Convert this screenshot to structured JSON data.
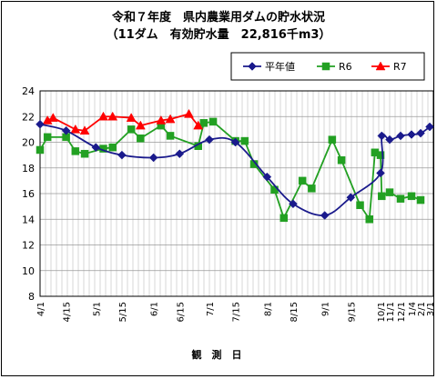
{
  "chart_data": {
    "type": "line",
    "title": "令和７年度　県内農業用ダムの貯水状況",
    "subtitle": "（11ダム　有効貯水量　22,816千m3）",
    "xlabel": "観　測　日",
    "ylabel": "",
    "ylim": [
      8,
      24
    ],
    "yticks": [
      8,
      10,
      12,
      14,
      16,
      18,
      20,
      22,
      24
    ],
    "grid": true,
    "legend_position": "top-right",
    "x_ticks": [
      "4/1",
      "4/15",
      "5/1",
      "5/15",
      "6/1",
      "6/15",
      "7/1",
      "7/15",
      "8/1",
      "8/15",
      "9/1",
      "9/15",
      "10/1",
      "11/1",
      "12/1",
      "1/4",
      "2/1",
      "3/1"
    ],
    "series": [
      {
        "name": "平年値",
        "color": "#1a1a8c",
        "marker": "diamond",
        "points": [
          [
            "4/1",
            21.4
          ],
          [
            "4/15",
            20.9
          ],
          [
            "5/1",
            19.6
          ],
          [
            "5/15",
            19.0
          ],
          [
            "6/1",
            18.8
          ],
          [
            "6/15",
            19.1
          ],
          [
            "7/1",
            20.2
          ],
          [
            "7/15",
            20.0
          ],
          [
            "8/1",
            17.3
          ],
          [
            "8/15",
            15.2
          ],
          [
            "9/1",
            14.3
          ],
          [
            "9/15",
            15.7
          ],
          [
            "10/1",
            17.6
          ],
          [
            "10/5",
            20.5
          ],
          [
            "11/1",
            20.2
          ],
          [
            "12/1",
            20.5
          ],
          [
            "1/4",
            20.6
          ],
          [
            "2/1",
            20.7
          ],
          [
            "3/1",
            21.2
          ]
        ]
      },
      {
        "name": "R6",
        "color": "#22a022",
        "marker": "square",
        "points": [
          [
            "4/1",
            19.4
          ],
          [
            "4/5",
            20.4
          ],
          [
            "4/15",
            20.4
          ],
          [
            "4/20",
            19.3
          ],
          [
            "4/25",
            19.1
          ],
          [
            "5/5",
            19.5
          ],
          [
            "5/10",
            19.6
          ],
          [
            "5/20",
            21.0
          ],
          [
            "5/25",
            20.3
          ],
          [
            "6/5",
            21.3
          ],
          [
            "6/10",
            20.5
          ],
          [
            "6/25",
            19.7
          ],
          [
            "6/28",
            21.5
          ],
          [
            "7/3",
            21.6
          ],
          [
            "7/15",
            20.1
          ],
          [
            "7/20",
            20.1
          ],
          [
            "7/25",
            18.3
          ],
          [
            "8/5",
            16.3
          ],
          [
            "8/10",
            14.1
          ],
          [
            "8/20",
            17.0
          ],
          [
            "8/25",
            16.4
          ],
          [
            "9/5",
            20.2
          ],
          [
            "9/10",
            18.6
          ],
          [
            "9/20",
            15.1
          ],
          [
            "9/25",
            14.0
          ],
          [
            "9/28",
            19.2
          ],
          [
            "10/1",
            19.0
          ],
          [
            "10/5",
            15.8
          ],
          [
            "11/1",
            16.1
          ],
          [
            "12/1",
            15.6
          ],
          [
            "1/4",
            15.8
          ],
          [
            "2/1",
            15.5
          ]
        ]
      },
      {
        "name": "R7",
        "color": "#ff0000",
        "marker": "triangle",
        "points": [
          [
            "4/5",
            21.7
          ],
          [
            "4/8",
            21.9
          ],
          [
            "4/20",
            21.0
          ],
          [
            "4/25",
            20.9
          ],
          [
            "5/5",
            22.0
          ],
          [
            "5/10",
            22.0
          ],
          [
            "5/20",
            21.9
          ],
          [
            "5/25",
            21.3
          ],
          [
            "6/5",
            21.7
          ],
          [
            "6/10",
            21.8
          ],
          [
            "6/20",
            22.2
          ],
          [
            "6/25",
            21.3
          ]
        ]
      }
    ]
  }
}
